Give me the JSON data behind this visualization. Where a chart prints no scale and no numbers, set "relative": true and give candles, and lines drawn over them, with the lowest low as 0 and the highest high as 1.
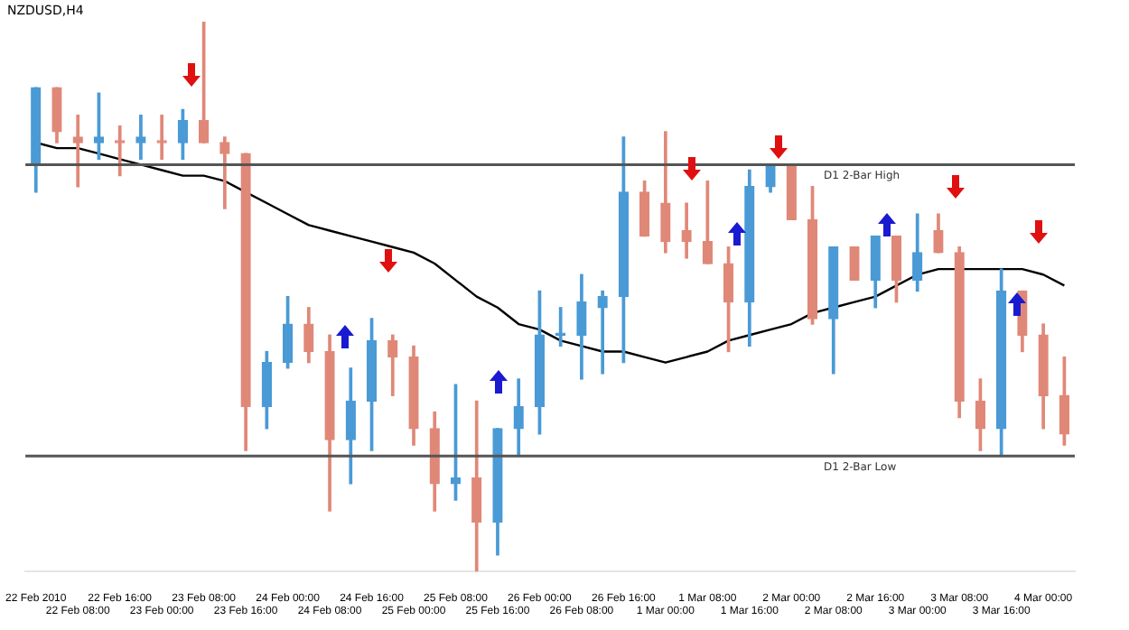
{
  "chart_data": {
    "type": "candlestick",
    "title": "NZDUSD,H4",
    "relative": true,
    "legend": false,
    "grid": false,
    "categories": [
      "22 Feb 2010",
      null,
      "22 Feb 08:00",
      null,
      "22 Feb 16:00",
      null,
      "23 Feb 00:00",
      null,
      "23 Feb 08:00",
      null,
      "23 Feb 16:00",
      null,
      "24 Feb 00:00",
      null,
      "24 Feb 08:00",
      null,
      "24 Feb 16:00",
      null,
      "25 Feb 00:00",
      null,
      "25 Feb 08:00",
      null,
      "25 Feb 16:00",
      null,
      "26 Feb 00:00",
      null,
      "26 Feb 08:00",
      null,
      "26 Feb 16:00",
      null,
      "1 Mar 00:00",
      null,
      "1 Mar 08:00",
      null,
      "1 Mar 16:00",
      null,
      "2 Mar 00:00",
      null,
      "2 Mar 08:00",
      null,
      "2 Mar 16:00",
      null,
      "3 Mar 00:00",
      null,
      "3 Mar 08:00",
      null,
      "3 Mar 16:00",
      null,
      "4 Mar 00:00",
      null
    ],
    "ohlc": [
      [
        0.74,
        0.88,
        0.69,
        0.88
      ],
      [
        0.88,
        0.88,
        0.78,
        0.8
      ],
      [
        0.79,
        0.83,
        0.7,
        0.78
      ],
      [
        0.78,
        0.87,
        0.75,
        0.79
      ],
      [
        0.78,
        0.81,
        0.72,
        0.78
      ],
      [
        0.78,
        0.83,
        0.75,
        0.79
      ],
      [
        0.78,
        0.83,
        0.75,
        0.78
      ],
      [
        0.78,
        0.84,
        0.75,
        0.82
      ],
      [
        0.82,
        1,
        0.78,
        0.78
      ],
      [
        0.78,
        0.79,
        0.66,
        0.76
      ],
      [
        0.76,
        0.76,
        0.22,
        0.3
      ],
      [
        0.3,
        0.4,
        0.26,
        0.38
      ],
      [
        0.38,
        0.5,
        0.37,
        0.45
      ],
      [
        0.45,
        0.48,
        0.38,
        0.4
      ],
      [
        0.4,
        0.43,
        0.11,
        0.24
      ],
      [
        0.24,
        0.37,
        0.16,
        0.31
      ],
      [
        0.31,
        0.46,
        0.22,
        0.42
      ],
      [
        0.42,
        0.43,
        0.32,
        0.39
      ],
      [
        0.39,
        0.41,
        0.23,
        0.26
      ],
      [
        0.26,
        0.29,
        0.11,
        0.16
      ],
      [
        0.16,
        0.34,
        0.13,
        0.17
      ],
      [
        0.17,
        0.31,
        0,
        0.09
      ],
      [
        0.09,
        0.26,
        0.03,
        0.26
      ],
      [
        0.26,
        0.35,
        0.21,
        0.3
      ],
      [
        0.3,
        0.51,
        0.25,
        0.43
      ],
      [
        0.43,
        0.48,
        0.41,
        0.43
      ],
      [
        0.43,
        0.54,
        0.35,
        0.49
      ],
      [
        0.48,
        0.51,
        0.36,
        0.5
      ],
      [
        0.5,
        0.79,
        0.38,
        0.69
      ],
      [
        0.69,
        0.71,
        0.61,
        0.61
      ],
      [
        0.67,
        0.8,
        0.58,
        0.6
      ],
      [
        0.62,
        0.67,
        0.57,
        0.6
      ],
      [
        0.6,
        0.71,
        0.56,
        0.56
      ],
      [
        0.56,
        0.59,
        0.4,
        0.49
      ],
      [
        0.49,
        0.73,
        0.41,
        0.7
      ],
      [
        0.7,
        0.74,
        0.69,
        0.74
      ],
      [
        0.74,
        0.74,
        0.64,
        0.64
      ],
      [
        0.64,
        0.7,
        0.45,
        0.46
      ],
      [
        0.46,
        0.59,
        0.36,
        0.59
      ],
      [
        0.59,
        0.59,
        0.53,
        0.53
      ],
      [
        0.53,
        0.61,
        0.48,
        0.61
      ],
      [
        0.61,
        0.61,
        0.49,
        0.53
      ],
      [
        0.53,
        0.65,
        0.51,
        0.58
      ],
      [
        0.62,
        0.65,
        0.58,
        0.58
      ],
      [
        0.58,
        0.59,
        0.28,
        0.31
      ],
      [
        0.31,
        0.35,
        0.22,
        0.26
      ],
      [
        0.26,
        0.55,
        0.21,
        0.51
      ],
      [
        0.51,
        0.51,
        0.4,
        0.43
      ],
      [
        0.43,
        0.45,
        0.26,
        0.32
      ],
      [
        0.32,
        0.39,
        0.23,
        0.25
      ]
    ],
    "colors": [
      "#4a9ad6",
      "#e08878",
      "#e08878",
      "#4a9ad6",
      "#e08878",
      "#4a9ad6",
      "#e08878",
      "#4a9ad6",
      "#e08878",
      "#e08878",
      "#e08878",
      "#4a9ad6",
      "#4a9ad6",
      "#e08878",
      "#e08878",
      "#4a9ad6",
      "#4a9ad6",
      "#e08878",
      "#e08878",
      "#e08878",
      "#4a9ad6",
      "#e08878",
      "#4a9ad6",
      "#4a9ad6",
      "#4a9ad6",
      "#4a9ad6",
      "#4a9ad6",
      "#4a9ad6",
      "#4a9ad6",
      "#e08878",
      "#e08878",
      "#e08878",
      "#e08878",
      "#e08878",
      "#4a9ad6",
      "#4a9ad6",
      "#e08878",
      "#e08878",
      "#4a9ad6",
      "#e08878",
      "#4a9ad6",
      "#e08878",
      "#4a9ad6",
      "#e08878",
      "#e08878",
      "#e08878",
      "#4a9ad6",
      "#e08878",
      "#e08878",
      "#e08878"
    ],
    "series": [
      {
        "type": "line",
        "color": "#000000",
        "values": [
          0.78,
          0.77,
          0.77,
          0.76,
          0.75,
          0.74,
          0.73,
          0.72,
          0.72,
          0.71,
          0.69,
          0.67,
          0.65,
          0.63,
          0.62,
          0.61,
          0.6,
          0.59,
          0.58,
          0.56,
          0.53,
          0.5,
          0.48,
          0.45,
          0.44,
          0.42,
          0.41,
          0.4,
          0.4,
          0.39,
          0.38,
          0.39,
          0.4,
          0.42,
          0.43,
          0.44,
          0.45,
          0.47,
          0.48,
          0.49,
          0.5,
          0.52,
          0.54,
          0.55,
          0.55,
          0.55,
          0.55,
          0.55,
          0.54,
          0.52
        ]
      }
    ],
    "ref_lines": [
      {
        "axis": "y",
        "value": 0.74,
        "label": "D1 2-Bar High",
        "color": "#555555"
      },
      {
        "axis": "y",
        "value": 0.21,
        "label": "D1 2-Bar Low",
        "color": "#555555"
      }
    ]
  }
}
